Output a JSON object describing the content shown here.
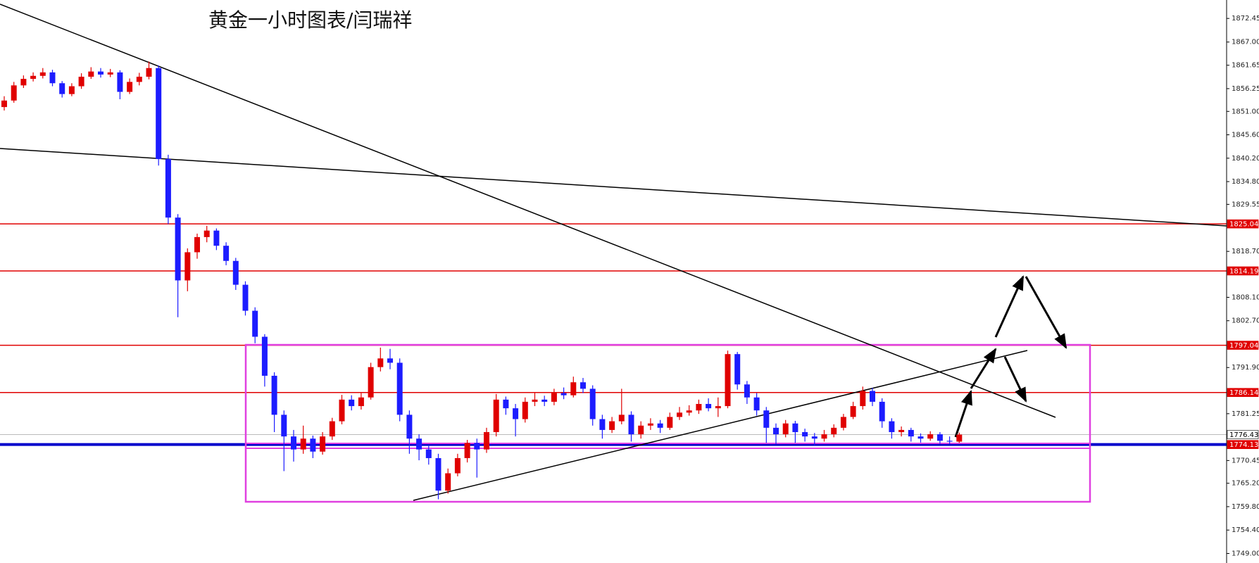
{
  "chart_data": {
    "type": "candlestick",
    "title": "黄金一小时图表/闫瑞祥",
    "categories": [
      null,
      null,
      null,
      null,
      null,
      null,
      null,
      null,
      null,
      null,
      null,
      null,
      null,
      null,
      null,
      null,
      null,
      null,
      null,
      null,
      null,
      null,
      null,
      null,
      null,
      null,
      null,
      null,
      null,
      null,
      null,
      null,
      null,
      null,
      null,
      null,
      null,
      null,
      null,
      null,
      null,
      null,
      null,
      null,
      null,
      null,
      null,
      null,
      null,
      null,
      null,
      null,
      null,
      null,
      null,
      null,
      null,
      null,
      null,
      null,
      null,
      null,
      null,
      null,
      null,
      null,
      null,
      null,
      null,
      null,
      null,
      null,
      null,
      null,
      null,
      null,
      null,
      null,
      null,
      null,
      null,
      null,
      null,
      null,
      null,
      null,
      null,
      null,
      null,
      null,
      null,
      null,
      null,
      null,
      null,
      null,
      null,
      null,
      null,
      null
    ],
    "open": [
      1852.0,
      1853.5,
      1857.0,
      1858.5,
      1859.2,
      1860.0,
      1857.5,
      1855.0,
      1856.8,
      1859.0,
      1860.2,
      1859.5,
      1860.0,
      1855.5,
      1857.8,
      1859.0,
      1861.0,
      1840.0,
      1826.5,
      1812.0,
      1818.5,
      1822.0,
      1823.5,
      1820.0,
      1816.5,
      1811.0,
      1805.0,
      1799.0,
      1790.0,
      1781.0,
      1776.0,
      1773.0,
      1775.5,
      1772.5,
      1776.0,
      1779.5,
      1784.5,
      1783.0,
      1785.0,
      1792.0,
      1794.0,
      1793.0,
      1781.0,
      1775.5,
      1773.0,
      1771.0,
      1763.5,
      1767.5,
      1771.0,
      1774.5,
      1773.0,
      1777.0,
      1784.5,
      1782.5,
      1780.0,
      1784.0,
      1784.5,
      1784.0,
      1786.0,
      1785.5,
      1788.5,
      1787.0,
      1780.0,
      1777.5,
      1779.5,
      1781.0,
      1776.5,
      1778.5,
      1779.0,
      1778.0,
      1780.5,
      1781.5,
      1782.0,
      1783.5,
      1782.5,
      1783.0,
      1795.0,
      1788.0,
      1785.0,
      1782.0,
      1778.0,
      1776.5,
      1779.0,
      1777.0,
      1776.0,
      1775.5,
      1776.5,
      1778.0,
      1780.5,
      1783.0,
      1786.5,
      1784.0,
      1779.5,
      1777.0,
      1777.5,
      1776.0,
      1775.5,
      1776.5,
      1775.0,
      1774.8
    ],
    "high": [
      1854.5,
      1857.8,
      1859.3,
      1860.0,
      1861.0,
      1860.6,
      1858.0,
      1857.5,
      1859.8,
      1861.2,
      1861.0,
      1860.8,
      1860.5,
      1858.6,
      1859.9,
      1862.5,
      1861.6,
      1841.0,
      1827.3,
      1819.4,
      1822.8,
      1824.6,
      1824.0,
      1820.8,
      1817.2,
      1811.8,
      1805.8,
      1799.6,
      1790.8,
      1782.0,
      1777.5,
      1778.5,
      1776.2,
      1777.0,
      1780.3,
      1785.6,
      1785.5,
      1786.0,
      1793.0,
      1796.5,
      1796.2,
      1794.0,
      1782.0,
      1776.5,
      1774.0,
      1772.0,
      1768.6,
      1772.0,
      1775.2,
      1775.5,
      1778.0,
      1785.8,
      1785.2,
      1783.5,
      1785.0,
      1786.0,
      1785.4,
      1787.0,
      1787.3,
      1789.8,
      1789.5,
      1787.8,
      1781.0,
      1780.5,
      1787.0,
      1781.8,
      1779.5,
      1780.2,
      1779.8,
      1781.5,
      1782.8,
      1783.2,
      1784.5,
      1784.8,
      1785.0,
      1795.8,
      1795.5,
      1788.8,
      1786.0,
      1782.8,
      1779.0,
      1779.8,
      1779.6,
      1777.8,
      1776.8,
      1777.5,
      1778.8,
      1781.2,
      1784.0,
      1787.5,
      1787.2,
      1784.8,
      1780.2,
      1778.3,
      1778.0,
      1776.7,
      1777.2,
      1777.0,
      1776.0,
      1776.9
    ],
    "low": [
      1851.2,
      1853.0,
      1856.4,
      1857.9,
      1858.6,
      1856.8,
      1854.2,
      1854.5,
      1856.2,
      1858.5,
      1858.8,
      1858.9,
      1853.8,
      1855.0,
      1857.0,
      1858.4,
      1838.5,
      1825.0,
      1803.5,
      1809.5,
      1817.0,
      1820.8,
      1819.0,
      1815.5,
      1809.8,
      1803.9,
      1797.5,
      1787.5,
      1777.0,
      1768.0,
      1770.2,
      1772.0,
      1771.0,
      1771.8,
      1775.2,
      1778.8,
      1782.0,
      1782.2,
      1784.5,
      1791.0,
      1791.5,
      1779.5,
      1772.0,
      1770.5,
      1769.5,
      1761.5,
      1762.8,
      1766.8,
      1770.0,
      1766.5,
      1772.2,
      1776.0,
      1781.0,
      1776.0,
      1779.2,
      1783.0,
      1783.0,
      1783.2,
      1784.6,
      1785.0,
      1786.0,
      1778.5,
      1775.5,
      1776.8,
      1778.8,
      1774.8,
      1775.5,
      1777.5,
      1776.8,
      1777.5,
      1779.8,
      1780.8,
      1781.2,
      1781.8,
      1780.5,
      1782.5,
      1786.8,
      1783.5,
      1780.8,
      1774.5,
      1774.2,
      1775.8,
      1774.5,
      1774.8,
      1774.0,
      1774.8,
      1775.8,
      1777.4,
      1780.0,
      1782.2,
      1783.0,
      1778.0,
      1775.5,
      1776.0,
      1774.8,
      1774.6,
      1775.0,
      1774.3,
      1774.2,
      1774.5
    ],
    "close": [
      1853.5,
      1857.0,
      1858.5,
      1859.2,
      1860.0,
      1857.5,
      1855.0,
      1856.8,
      1859.0,
      1860.2,
      1859.5,
      1860.0,
      1855.5,
      1857.8,
      1859.0,
      1861.0,
      1840.0,
      1826.5,
      1812.0,
      1818.5,
      1822.0,
      1823.5,
      1820.0,
      1816.5,
      1811.0,
      1805.0,
      1799.0,
      1790.0,
      1781.0,
      1776.0,
      1773.0,
      1775.5,
      1772.5,
      1776.0,
      1779.5,
      1784.5,
      1783.0,
      1785.0,
      1792.0,
      1794.0,
      1793.0,
      1781.0,
      1775.5,
      1773.0,
      1771.0,
      1763.5,
      1767.5,
      1771.0,
      1774.5,
      1773.0,
      1777.0,
      1784.5,
      1782.5,
      1780.0,
      1784.0,
      1784.5,
      1784.0,
      1786.0,
      1785.5,
      1788.5,
      1787.0,
      1780.0,
      1777.5,
      1779.5,
      1781.0,
      1776.5,
      1778.5,
      1779.0,
      1778.0,
      1780.5,
      1781.5,
      1782.0,
      1783.5,
      1782.5,
      1783.0,
      1795.0,
      1788.0,
      1785.0,
      1782.0,
      1778.0,
      1776.5,
      1779.0,
      1777.0,
      1776.0,
      1775.5,
      1776.5,
      1778.0,
      1780.5,
      1783.0,
      1786.5,
      1784.0,
      1779.5,
      1777.0,
      1777.5,
      1776.0,
      1775.5,
      1776.5,
      1775.0,
      1774.8,
      1776.43
    ],
    "up_color": "#e00000",
    "down_color": "#1c1cff",
    "ylim": [
      1746.8,
      1876.7
    ],
    "yticks": [
      {
        "value": 1872.45,
        "label": "1872.45"
      },
      {
        "value": 1867,
        "label": "1867.00"
      },
      {
        "value": 1861.65,
        "label": "1861.65"
      },
      {
        "value": 1856.25,
        "label": "1856.25"
      },
      {
        "value": 1851,
        "label": "1851.00"
      },
      {
        "value": 1845.6,
        "label": "1845.60"
      },
      {
        "value": 1840.2,
        "label": "1840.20"
      },
      {
        "value": 1834.8,
        "label": "1834.80"
      },
      {
        "value": 1829.55,
        "label": "1829.55"
      },
      {
        "value": 1818.7,
        "label": "1818.70"
      },
      {
        "value": 1808.1,
        "label": "1808.10"
      },
      {
        "value": 1802.7,
        "label": "1802.70"
      },
      {
        "value": 1791.9,
        "label": "1791.90"
      },
      {
        "value": 1781.25,
        "label": "1781.25"
      },
      {
        "value": 1770.45,
        "label": "1770.45"
      },
      {
        "value": 1765.2,
        "label": "1765.20"
      },
      {
        "value": 1759.8,
        "label": "1759.80"
      },
      {
        "value": 1754.4,
        "label": "1754.40"
      },
      {
        "value": 1749,
        "label": "1749.00"
      }
    ],
    "levels": [
      {
        "value": 1825.04,
        "color": "#e00000",
        "line_width": 1.5,
        "label_color": "#ffffff"
      },
      {
        "value": 1814.19,
        "color": "#e00000",
        "line_width": 1.5,
        "label_color": "#ffffff"
      },
      {
        "value": 1797.04,
        "color": "#e00000",
        "line_width": 1.5,
        "label_color": "#ffffff"
      },
      {
        "value": 1786.14,
        "color": "#e00000",
        "line_width": 1.5,
        "label_color": "#ffffff"
      },
      {
        "value": 1776.43,
        "color": "#bbbbbb",
        "line_width": 1,
        "label_color": "#000000"
      },
      {
        "value": 1774.13,
        "color": "#0000cc",
        "line_width": 4,
        "label_color": "#ffffff"
      }
    ]
  }
}
